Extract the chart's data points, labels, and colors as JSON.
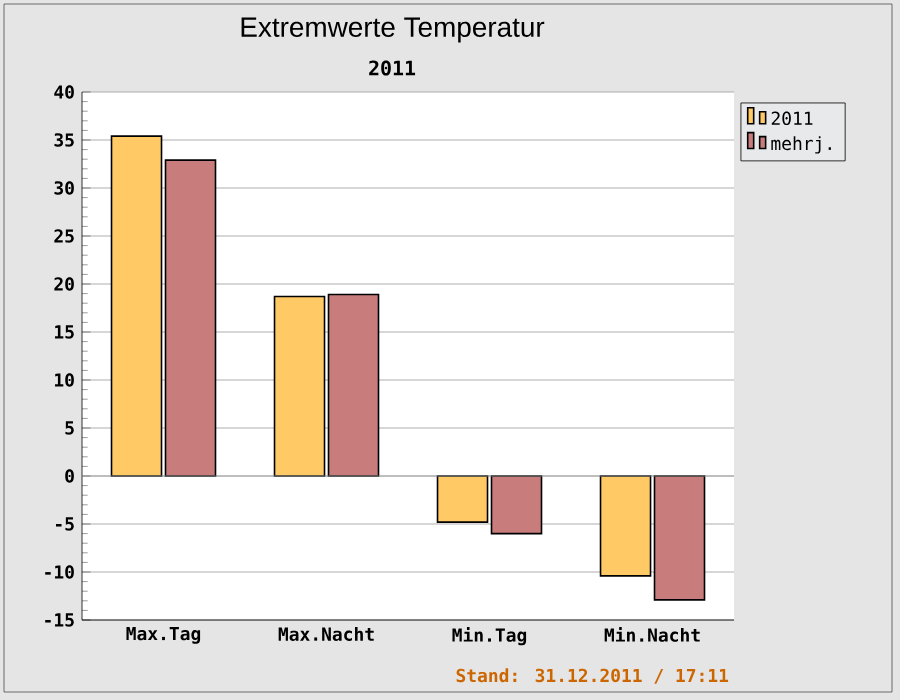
{
  "chart_data": {
    "type": "bar",
    "title": "Extremwerte Temperatur",
    "subtitle": "2011",
    "categories": [
      "Max.Tag",
      "Max.Nacht",
      "Min.Tag",
      "Min.Nacht"
    ],
    "series": [
      {
        "name": "2011",
        "color": "#ffc966",
        "values": [
          35.4,
          18.7,
          -4.8,
          -10.4
        ]
      },
      {
        "name": "mehrj.",
        "color": "#c87c7c",
        "values": [
          32.9,
          18.9,
          -6.0,
          -12.9
        ]
      }
    ],
    "ylim": [
      -15,
      40
    ],
    "yticks": [
      -15,
      -10,
      -5,
      0,
      5,
      10,
      15,
      20,
      25,
      30,
      35,
      40
    ],
    "grid": "y",
    "legend": "top right",
    "annotations": [
      "Stand: 31.12.2011 / 17:11"
    ]
  }
}
